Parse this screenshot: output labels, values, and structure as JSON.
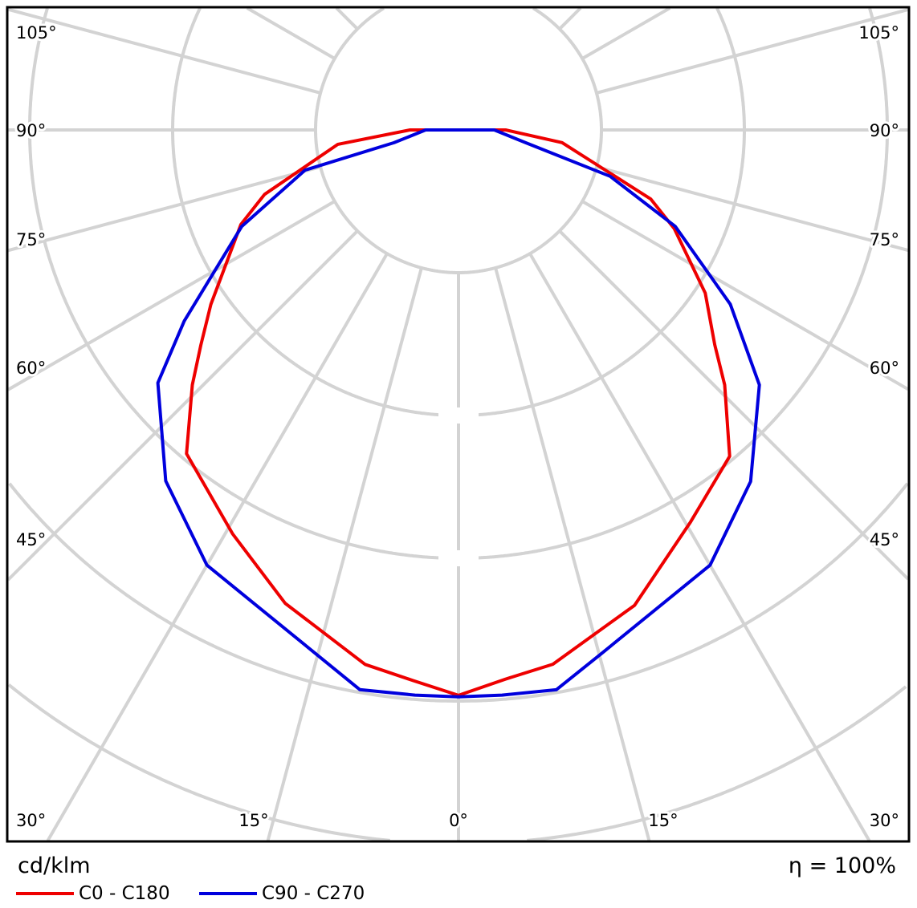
{
  "chart_data": {
    "type": "polar",
    "unit_label": "cd/klm",
    "efficiency_label": "η = 100%",
    "angle_labels": {
      "left": [
        "105°",
        "90°",
        "75°",
        "60°",
        "45°",
        "30°"
      ],
      "right": [
        "105°",
        "90°",
        "75°",
        "60°",
        "45°",
        "30°"
      ],
      "bottom": [
        "30°",
        "15°",
        "0°",
        "15°",
        "30°"
      ]
    },
    "radial_grid_rings": 7,
    "angle_grid_step_deg": 15,
    "grid": true,
    "legend_placement": "bottom-left",
    "series": [
      {
        "name": "C0 - C180",
        "color": "#ee0000",
        "right": {
          "gamma": [
            0,
            4.9,
            10,
            20.3,
            30.6,
            39.7,
            46.2,
            50,
            56.5,
            65.4,
            70.2,
            83,
            90
          ],
          "r": [
            3.96,
            3.86,
            3.8,
            3.55,
            3.19,
            2.97,
            2.58,
            2.34,
            2.07,
            1.66,
            1.43,
            0.73,
            0.33
          ]
        },
        "left": {
          "gamma": [
            0,
            4.7,
            9.9,
            20.1,
            29.2,
            40,
            46.2,
            50.1,
            54.8,
            66.5,
            71.6,
            83.2,
            90
          ],
          "r": [
            3.96,
            3.87,
            3.8,
            3.53,
            3.24,
            2.96,
            2.58,
            2.35,
            2.12,
            1.66,
            1.43,
            0.85,
            0.34
          ]
        }
      },
      {
        "name": "C90 - C270",
        "color": "#0000dd",
        "right": {
          "gamma": [
            0,
            4.4,
            9.9,
            15.3,
            30,
            39.7,
            49.7,
            57.3,
            66,
            73,
            79.2,
            90
          ],
          "r": [
            3.97,
            3.97,
            3.98,
            3.8,
            3.52,
            3.2,
            2.76,
            2.26,
            1.66,
            1.11,
            0.48,
            0.25
          ]
        },
        "left": {
          "gamma": [
            0,
            4.4,
            10,
            15.3,
            30,
            39.8,
            49.9,
            55.1,
            66,
            75.3,
            78.8,
            90
          ],
          "r": [
            3.97,
            3.97,
            3.98,
            3.8,
            3.52,
            3.2,
            2.75,
            2.34,
            1.66,
            1.11,
            0.46,
            0.23
          ]
        }
      }
    ]
  }
}
